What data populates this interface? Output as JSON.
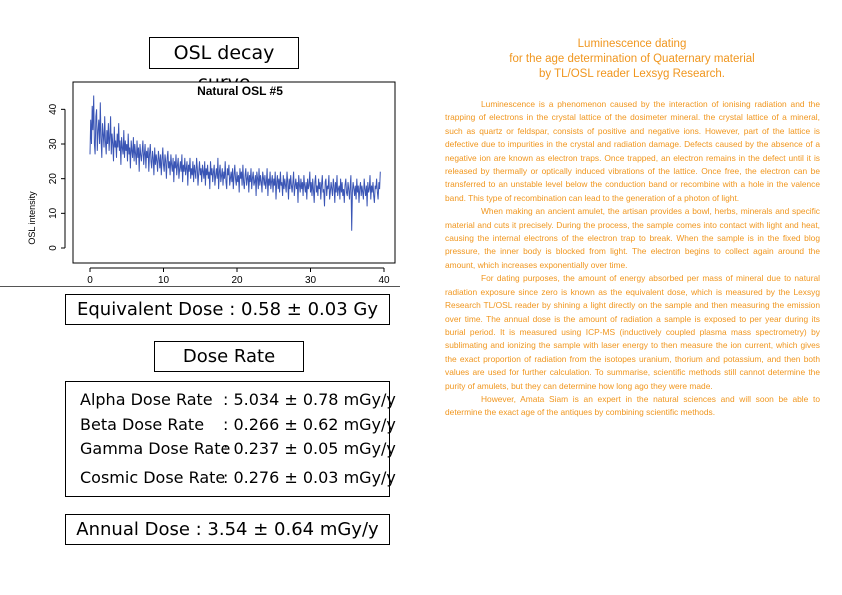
{
  "left_panel": {
    "title": "OSL decay curve",
    "equivalent_dose": "Equivalent Dose : 0.58 ±  0.03 Gy",
    "dose_rate_title": "Dose Rate",
    "rates": [
      {
        "label": "Alpha Dose Rate",
        "value": ": 5.034 ±  0.78 mGy/y"
      },
      {
        "label": "Beta Dose Rate",
        "value": ": 0.266 ±  0.62 mGy/y"
      },
      {
        "label": "Gamma Dose Rate",
        "value": ": 0.237 ±  0.05 mGy/y"
      },
      {
        "label": "Cosmic Dose Rate",
        "value": ": 0.276 ± 0.03 mGy/y"
      }
    ],
    "annual_dose": "Annual Dose : 3.54 ±  0.64 mGy/y"
  },
  "chart_data": {
    "type": "line",
    "title": "Natural OSL #5",
    "xlabel": "",
    "ylabel": "OSL intensity",
    "xlim": [
      0,
      40
    ],
    "ylim": [
      0,
      45
    ],
    "x_ticks": [
      0,
      10,
      20,
      30,
      40
    ],
    "y_ticks": [
      0,
      10,
      20,
      30,
      40
    ],
    "grid": false,
    "line_color": "#3A55B5",
    "series": [
      {
        "x_start": 0,
        "x_step": 0.1,
        "values": [
          27,
          37,
          30,
          41,
          34,
          44,
          30,
          27,
          38,
          40,
          28,
          34,
          37,
          30,
          42,
          32,
          26,
          36,
          33,
          29,
          38,
          31,
          27,
          34,
          30,
          36,
          28,
          32,
          38,
          27,
          33,
          30,
          25,
          35,
          29,
          31,
          26,
          33,
          29,
          36,
          28,
          31,
          24,
          32,
          29,
          27,
          34,
          26,
          31,
          28,
          30,
          25,
          33,
          27,
          29,
          23,
          31,
          28,
          26,
          32,
          25,
          30,
          27,
          24,
          31,
          26,
          29,
          22,
          30,
          27,
          25,
          28,
          31,
          24,
          27,
          30,
          23,
          28,
          26,
          29,
          22,
          27,
          30,
          25,
          23,
          28,
          26,
          21,
          29,
          24,
          27,
          25,
          22,
          28,
          26,
          23,
          27,
          21,
          25,
          29,
          24,
          22,
          27,
          25,
          20,
          26,
          28,
          23,
          25,
          21,
          27,
          24,
          22,
          26,
          19,
          25,
          23,
          27,
          21,
          24,
          26,
          20,
          23,
          25,
          22,
          27,
          19,
          24,
          22,
          26,
          21,
          23,
          25,
          18,
          24,
          22,
          26,
          20,
          23,
          21,
          25,
          19,
          24,
          22,
          20,
          26,
          23,
          18,
          22,
          25,
          21,
          23,
          19,
          24,
          22,
          20,
          25,
          18,
          23,
          21,
          24,
          20,
          22,
          17,
          25,
          21,
          23,
          19,
          22,
          24,
          18,
          21,
          23,
          20,
          26,
          17,
          22,
          24,
          19,
          21,
          23,
          18,
          22,
          20,
          25,
          19,
          17,
          23,
          21,
          24,
          18,
          20,
          22,
          19,
          23,
          17,
          21,
          24,
          20,
          18,
          22,
          19,
          21,
          16,
          23,
          20,
          22,
          18,
          24,
          19,
          17,
          21,
          23,
          18,
          20,
          22,
          16,
          21,
          19,
          23,
          17,
          20,
          22,
          18,
          19,
          21,
          15,
          22,
          20,
          17,
          23,
          18,
          21,
          19,
          16,
          22,
          20,
          18,
          21,
          17,
          19,
          23,
          15,
          20,
          18,
          22,
          17,
          19,
          21,
          16,
          20,
          18,
          22,
          14,
          19,
          21,
          17,
          20,
          16,
          22,
          18,
          19,
          15,
          21,
          17,
          20,
          18,
          16,
          22,
          19,
          14,
          20,
          17,
          21,
          18,
          16,
          19,
          22,
          15,
          18,
          20,
          17,
          19,
          13,
          21,
          18,
          16,
          20,
          17,
          19,
          15,
          21,
          18,
          16,
          19,
          14,
          20,
          17,
          18,
          22,
          16,
          19,
          15,
          20,
          17,
          13,
          19,
          21,
          16,
          18,
          15,
          20,
          17,
          19,
          14,
          18,
          21,
          16,
          17,
          12,
          19,
          20,
          15,
          18,
          17,
          21,
          14,
          16,
          19,
          17,
          15,
          20,
          18,
          13,
          19,
          16,
          21,
          15,
          17,
          18,
          14,
          20,
          16,
          19,
          15,
          17,
          13,
          18,
          20,
          16,
          15,
          19,
          17,
          14,
          18,
          21,
          5,
          16,
          19,
          17,
          15,
          18,
          14,
          20,
          16,
          18,
          13,
          17,
          19,
          15,
          18,
          16,
          14,
          20,
          17,
          15,
          18,
          12,
          19,
          16,
          17,
          21,
          14,
          18,
          16,
          19,
          15,
          13,
          18,
          17,
          20,
          16,
          14,
          19,
          17,
          22
        ]
      }
    ]
  },
  "right_panel": {
    "heading_lines": [
      "Luminescence dating",
      "for the age determination of Quaternary material",
      "by TL/OSL reader Lexsyg Research."
    ],
    "paragraphs": [
      "Luminescence is a phenomenon caused by the interaction of ionising radiation and the trapping of electrons in the crystal lattice of the dosimeter mineral. the crystal lattice of a mineral, such as quartz or feldspar, consists of positive and negative ions. However, part of the lattice is defective due to impurities in the crystal and radiation damage. Defects caused by the absence of a negative ion are known as electron traps. Once trapped, an electron remains in the defect until it is released by thermally or optically induced vibrations of the lattice. Once free, the electron can be transferred to an unstable level below the conduction band or recombine with a hole in the valence band. This type of recombination can lead to the generation of a photon of light.",
      "When making an ancient amulet, the artisan provides a bowl, herbs, minerals and specific material and cuts it precisely. During the process, the sample comes into contact with light and heat, causing the internal electrons of the electron trap to break. When the sample is in the fixed blog pressure, the inner body is blocked from light. The electron begins to collect again around the amount, which increases exponentially over time.",
      "For dating purposes, the amount of energy absorbed per mass of mineral due to natural radiation exposure since zero is known as the equivalent dose, which is measured by the Lexsyg Research TL/OSL reader by shining a light directly on the sample and then measuring the emission over time. The annual dose is the amount of radiation a sample is exposed to per year during its burial period. It is measured using ICP-MS (inductively coupled plasma mass spectrometry) by sublimating and ionizing the sample with laser energy to then measure the ion current, which gives the exact proportion of radiation from the isotopes uranium, thorium and potassium, and then both values are used for further calculation. To summarise, scientific methods still cannot determine the purity of amulets, but they can determine how long ago they were made.",
      "However, Amata Siam is an expert in the natural sciences and will soon be able to determine the exact age of the antiques by combining scientific methods."
    ]
  }
}
